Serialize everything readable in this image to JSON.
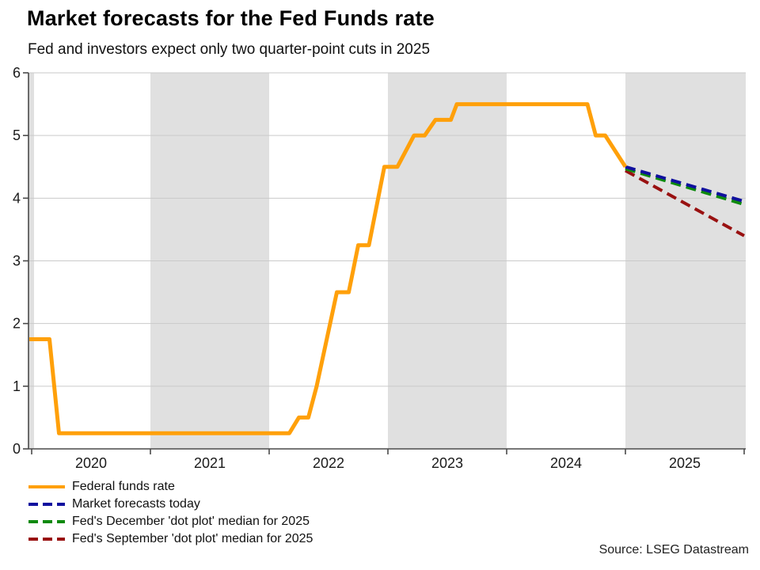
{
  "header": {
    "title": "Market forecasts for the Fed Funds rate",
    "subtitle": "Fed and investors expect only two quarter-point cuts in 2025"
  },
  "source": "Source: LSEG Datastream",
  "colors": {
    "fed_funds": "#FFA00A",
    "market_forecast": "#10109E",
    "dec_dot_plot": "#0E8A0E",
    "sep_dot_plot": "#991111",
    "shaded_band": "#E0E0E0",
    "gridline": "#CACACA",
    "axis": "#4A4A4A",
    "tick_text": "#1A1A1A"
  },
  "legend": [
    {
      "label": "Federal funds rate",
      "color": "#FFA00A",
      "dashed": false
    },
    {
      "label": "Market forecasts today",
      "color": "#10109E",
      "dashed": true
    },
    {
      "label": "Fed's December 'dot plot' median for 2025",
      "color": "#0E8A0E",
      "dashed": true
    },
    {
      "label": "Fed's September 'dot plot' median for 2025",
      "color": "#991111",
      "dashed": true
    }
  ],
  "chart_data": {
    "type": "line",
    "title": "Market forecasts for the Fed Funds rate",
    "subtitle": "Fed and investors expect only two quarter-point cuts in 2025",
    "xlabel": "",
    "ylabel": "",
    "ylim": [
      0,
      6
    ],
    "y_ticks": [
      0,
      1,
      2,
      3,
      4,
      5,
      6
    ],
    "y_tick_labels": [
      "0",
      "1",
      "2",
      "3",
      "4",
      "5",
      "6"
    ],
    "x_range_years": [
      2019.97,
      2026.02
    ],
    "x_boundary_tick_years": [
      2020,
      2021,
      2022,
      2023,
      2024,
      2025,
      2026
    ],
    "x_year_labels": [
      "2020",
      "2021",
      "2022",
      "2023",
      "2024",
      "2025"
    ],
    "grid": true,
    "legend_position": "bottom-left",
    "shaded_bands_years": [
      [
        2019.97,
        2020.02
      ],
      [
        2021.0,
        2022.0
      ],
      [
        2023.0,
        2024.0
      ],
      [
        2025.0,
        2026.02
      ]
    ],
    "series": [
      {
        "name": "Federal funds rate",
        "color": "#FFA00A",
        "dashed": false,
        "width": 5,
        "points": [
          [
            2019.98,
            1.75
          ],
          [
            2020.15,
            1.75
          ],
          [
            2020.23,
            0.25
          ],
          [
            2022.17,
            0.25
          ],
          [
            2022.25,
            0.5
          ],
          [
            2022.33,
            0.5
          ],
          [
            2022.4,
            1.0
          ],
          [
            2022.57,
            2.5
          ],
          [
            2022.67,
            2.5
          ],
          [
            2022.75,
            3.25
          ],
          [
            2022.84,
            3.25
          ],
          [
            2022.97,
            4.5
          ],
          [
            2023.08,
            4.5
          ],
          [
            2023.22,
            5.0
          ],
          [
            2023.31,
            5.0
          ],
          [
            2023.4,
            5.25
          ],
          [
            2023.53,
            5.25
          ],
          [
            2023.58,
            5.5
          ],
          [
            2024.68,
            5.5
          ],
          [
            2024.75,
            5.0
          ],
          [
            2024.83,
            5.0
          ],
          [
            2025.0,
            4.5
          ]
        ]
      },
      {
        "name": "Market forecasts today",
        "color": "#10109E",
        "dashed": true,
        "width": 4,
        "points": [
          [
            2025.0,
            4.5
          ],
          [
            2026.0,
            3.95
          ]
        ]
      },
      {
        "name": "Fed's December 'dot plot' median for 2025",
        "color": "#0E8A0E",
        "dashed": true,
        "width": 4,
        "points": [
          [
            2025.0,
            4.47
          ],
          [
            2026.0,
            3.9
          ]
        ]
      },
      {
        "name": "Fed's September 'dot plot' median for 2025",
        "color": "#991111",
        "dashed": true,
        "width": 4,
        "points": [
          [
            2025.0,
            4.44
          ],
          [
            2026.0,
            3.4
          ]
        ]
      }
    ]
  }
}
